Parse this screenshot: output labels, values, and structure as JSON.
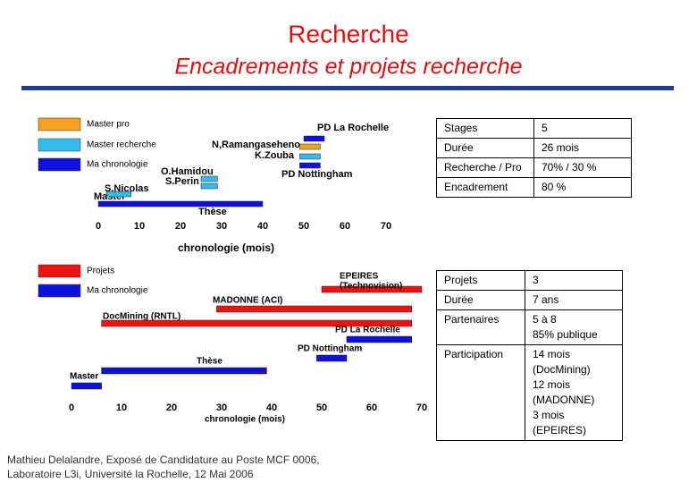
{
  "header": {
    "title": "Recherche",
    "subtitle": "Encadrements et projets recherche"
  },
  "chart_data": [
    {
      "type": "gantt",
      "x_label": "chronologie (mois)",
      "xlim": [
        0,
        70
      ],
      "xticks": [
        0,
        10,
        20,
        30,
        40,
        50,
        60,
        70
      ],
      "legend": [
        {
          "name": "Master pro",
          "color": "#f5a020"
        },
        {
          "name": "Master recherche",
          "color": "#33bbee"
        },
        {
          "name": "Ma chronologie",
          "color": "#1010dd"
        }
      ],
      "bars": [
        {
          "label": "Master",
          "start": 0,
          "end": 6,
          "color": "#1010dd"
        },
        {
          "label": "Thèse",
          "start": 6,
          "end": 40,
          "color": "#1010dd"
        },
        {
          "label": "S.Nicolas",
          "start": 2,
          "end": 8,
          "color": "#33bbee"
        },
        {
          "label": "O.Hamidou",
          "start": 25,
          "end": 29,
          "color": "#33bbee"
        },
        {
          "label": "S.Perin",
          "start": 25,
          "end": 29,
          "color": "#33bbee"
        },
        {
          "label": "PD Nottingham",
          "start": 49,
          "end": 54,
          "color": "#1010dd"
        },
        {
          "label": "N,Ramangaseheno",
          "start": 49,
          "end": 54,
          "color": "#f5a020"
        },
        {
          "label": "K.Zouba",
          "start": 49,
          "end": 54,
          "color": "#33bbee"
        },
        {
          "label": "PD La Rochelle",
          "start": 50,
          "end": 55,
          "color": "#1010dd"
        }
      ]
    },
    {
      "type": "gantt",
      "x_label": "chronologie (mois)",
      "xlim": [
        0,
        70
      ],
      "xticks": [
        0,
        10,
        20,
        30,
        40,
        50,
        60,
        70
      ],
      "legend": [
        {
          "name": "Projets",
          "color": "#ee1111"
        },
        {
          "name": "Ma chronologie",
          "color": "#1010dd"
        }
      ],
      "bars": [
        {
          "label": [
            "EPEIRES",
            "(Technovision)"
          ],
          "start": 50,
          "end": 70,
          "color": "#ee1111"
        },
        {
          "label": "MADONNE (ACI)",
          "start": 29,
          "end": 68,
          "color": "#ee1111"
        },
        {
          "label": "DocMining (RNTL)",
          "start": 6,
          "end": 68,
          "color": "#ee1111"
        },
        {
          "label": "PD La Rochelle",
          "start": 55,
          "end": 68,
          "color": "#1010dd"
        },
        {
          "label": "PD Nottingham",
          "start": 49,
          "end": 55,
          "color": "#1010dd"
        },
        {
          "label": "Thèse",
          "start": 6,
          "end": 39,
          "color": "#1010dd"
        },
        {
          "label": "Master",
          "start": 0,
          "end": 6,
          "color": "#1010dd"
        }
      ]
    }
  ],
  "tables": [
    {
      "rows": [
        [
          "Stages",
          "5"
        ],
        [
          "Durée",
          "26 mois"
        ],
        [
          "Recherche / Pro",
          "70% / 30 %"
        ],
        [
          "Encadrement",
          "80 %"
        ]
      ]
    },
    {
      "rows": [
        [
          "Projets",
          "3"
        ],
        [
          "Durée",
          "7 ans"
        ],
        [
          "Partenaires",
          [
            "5 à 8",
            "85% publique"
          ]
        ],
        [
          "Participation",
          [
            "14 mois (DocMining)",
            "12 mois (MADONNE)",
            "3 mois (EPEIRES)"
          ]
        ]
      ]
    }
  ],
  "footer": [
    "Mathieu Delalandre, Exposé de Candidature au Poste MCF 0006,",
    "Laboratoire L3i, Université la Rochelle, 12 Mai 2006"
  ]
}
